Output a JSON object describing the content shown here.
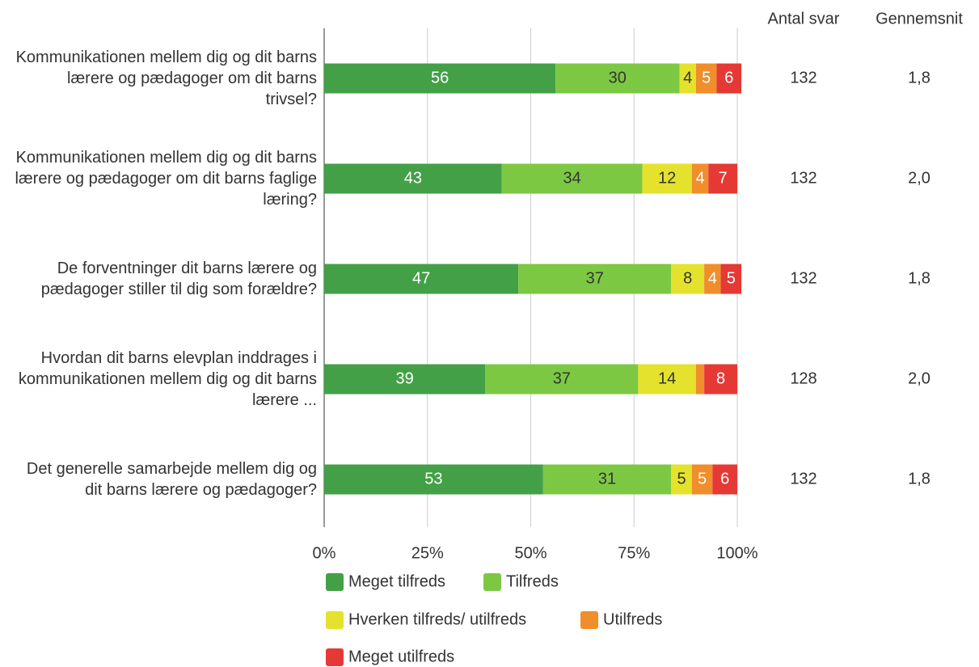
{
  "chart_data": {
    "type": "stacked-bar-horizontal",
    "categories": [
      "Kommunikationen mellem dig og dit barns lærere og pædagoger om dit barns trivsel?",
      "Kommunikationen mellem dig og dit barns lærere og pædagoger om dit barns faglige læring?",
      "De forventninger dit barns lærere og pædagoger stiller til dig som forældre?",
      "Hvordan dit barns elevplan inddrages i kommunikationen mellem dig og dit barns lærere ...",
      "Det generelle samarbejde mellem dig og dit barns lærere og pædagoger?"
    ],
    "series": [
      {
        "name": "Meget tilfreds",
        "color": "#43a047",
        "values": [
          56,
          43,
          47,
          39,
          53
        ]
      },
      {
        "name": "Tilfreds",
        "color": "#7cc843",
        "values": [
          30,
          34,
          37,
          37,
          31
        ]
      },
      {
        "name": "Hverken tilfreds/ utilfreds",
        "color": "#e4e22c",
        "values": [
          4,
          12,
          8,
          14,
          5
        ]
      },
      {
        "name": "Utilfreds",
        "color": "#ef8e2b",
        "values": [
          5,
          4,
          4,
          2,
          5
        ],
        "value_labels": [
          "5",
          "4",
          "4",
          null,
          "5"
        ]
      },
      {
        "name": "Meget utilfreds",
        "color": "#e53935",
        "values": [
          6,
          7,
          5,
          8,
          6
        ]
      }
    ],
    "xlim": [
      0,
      100
    ],
    "xticks": [
      {
        "value": 0,
        "label": "0%"
      },
      {
        "value": 25,
        "label": "25%"
      },
      {
        "value": 50,
        "label": "50%"
      },
      {
        "value": 75,
        "label": "75%"
      },
      {
        "value": 100,
        "label": "100%"
      }
    ],
    "grid": true,
    "columns": [
      {
        "header": "Antal svar",
        "values": [
          132,
          132,
          132,
          128,
          132
        ]
      },
      {
        "header": "Gennemsnit",
        "values": [
          1.8,
          2.0,
          1.8,
          2.0,
          1.8
        ],
        "value_labels": [
          "1,8",
          "2,0",
          "1,8",
          "2,0",
          "1,8"
        ]
      }
    ]
  }
}
